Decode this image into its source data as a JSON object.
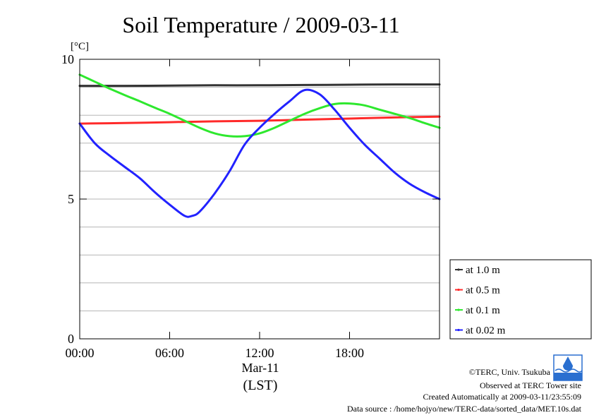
{
  "chart_data": {
    "type": "line",
    "title": "Soil Temperature / 2009-03-11",
    "y_unit": "[°C]",
    "xlabel_date": "Mar-11",
    "xlabel": "(LST)",
    "ylim": [
      0,
      10
    ],
    "xlim_hours": [
      0,
      24
    ],
    "grid": true,
    "grid_step": 1,
    "y_ticks": [
      {
        "value": 0,
        "label": "0"
      },
      {
        "value": 5,
        "label": "5"
      },
      {
        "value": 10,
        "label": "10"
      }
    ],
    "x_ticks": [
      {
        "value": 0,
        "label": "00:00"
      },
      {
        "value": 6,
        "label": "06:00"
      },
      {
        "value": 12,
        "label": "12:00"
      },
      {
        "value": 18,
        "label": "18:00"
      }
    ],
    "legend_position": "right-bottom",
    "series": [
      {
        "name": "at 1.0 m",
        "color": "#333333",
        "x": [
          0,
          3,
          6,
          9,
          12,
          15,
          18,
          21,
          24
        ],
        "y": [
          9.05,
          9.05,
          9.06,
          9.07,
          9.07,
          9.08,
          9.09,
          9.1,
          9.1
        ]
      },
      {
        "name": "at 0.5 m",
        "color": "#ff2a2a",
        "x": [
          0,
          3,
          6,
          9,
          12,
          15,
          18,
          21,
          24
        ],
        "y": [
          7.7,
          7.72,
          7.75,
          7.78,
          7.8,
          7.84,
          7.88,
          7.92,
          7.95
        ]
      },
      {
        "name": "at 0.1 m",
        "color": "#2ee82e",
        "x": [
          0,
          1,
          2,
          3,
          4,
          5,
          6,
          7,
          8,
          9,
          10,
          11,
          12,
          13,
          14,
          15,
          16,
          17,
          18,
          19,
          20,
          21,
          22,
          23,
          24
        ],
        "y": [
          9.45,
          9.2,
          8.95,
          8.72,
          8.5,
          8.27,
          8.05,
          7.8,
          7.55,
          7.35,
          7.25,
          7.25,
          7.35,
          7.55,
          7.8,
          8.05,
          8.25,
          8.4,
          8.42,
          8.35,
          8.2,
          8.05,
          7.9,
          7.72,
          7.55
        ]
      },
      {
        "name": "at 0.02 m",
        "color": "#2222ff",
        "x": [
          0,
          1,
          2,
          3,
          4,
          5,
          6,
          7,
          7.5,
          8,
          9,
          10,
          11,
          12,
          13,
          14,
          15,
          16,
          17,
          18,
          19,
          20,
          21,
          22,
          23,
          24
        ],
        "y": [
          7.7,
          7.0,
          6.55,
          6.15,
          5.75,
          5.25,
          4.8,
          4.4,
          4.4,
          4.55,
          5.2,
          6.0,
          6.95,
          7.55,
          8.05,
          8.5,
          8.9,
          8.75,
          8.2,
          7.55,
          6.95,
          6.45,
          5.95,
          5.55,
          5.25,
          5.0
        ]
      }
    ]
  },
  "credits": {
    "copyright": "©TERC, Univ. Tsukuba",
    "observed": "Observed at TERC Tower site",
    "created": "Created Automatically at 2009-03-11/23:55:09",
    "source": "Data source : /home/hojyo/new/TERC-data/sorted_data/MET.10s.dat"
  }
}
